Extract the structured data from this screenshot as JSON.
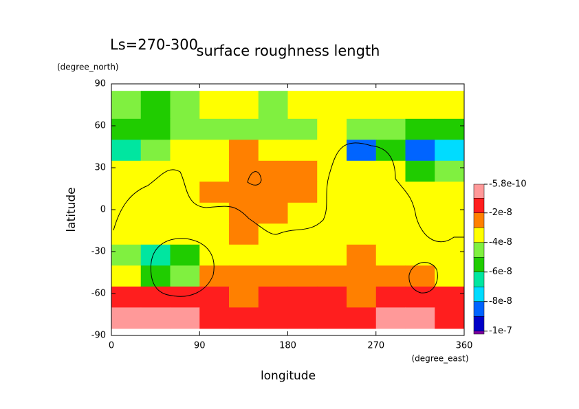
{
  "chart_data": {
    "type": "filled-contour",
    "title": "surface roughness length",
    "subtitle": "Ls=270-300",
    "x_label": "longitude",
    "x_units": "(degree_east)",
    "y_label": "latitude",
    "y_units": "(degree_north)",
    "xlim": [
      0,
      360
    ],
    "xticks": [
      0,
      90,
      180,
      270,
      360
    ],
    "ylim": [
      -90,
      90
    ],
    "yticks": [
      -90,
      -60,
      -30,
      0,
      30,
      60,
      90
    ],
    "x_edges": [
      0,
      30,
      60,
      90,
      120,
      150,
      180,
      210,
      240,
      270,
      300,
      330,
      360
    ],
    "y_edges": [
      85,
      65,
      50,
      35,
      20,
      5,
      -10,
      -25,
      -40,
      -55,
      -70,
      -85
    ],
    "z": [
      [
        -4.5e-08,
        -5.5e-08,
        -4.5e-08,
        -3.5e-08,
        -3.5e-08,
        -4.5e-08,
        -3.5e-08,
        -3.5e-08,
        -3.5e-08,
        -3.5e-08,
        -3.5e-08,
        -3.5e-08
      ],
      [
        -5.5e-08,
        -5.5e-08,
        -4.5e-08,
        -4.5e-08,
        -4.5e-08,
        -4.5e-08,
        -4.5e-08,
        -3.5e-08,
        -4.5e-08,
        -4.5e-08,
        -5.5e-08,
        -5.5e-08
      ],
      [
        -6.5e-08,
        -4.5e-08,
        -3.5e-08,
        -3.5e-08,
        -2.5e-08,
        -3.5e-08,
        -3.5e-08,
        -3.5e-08,
        -8.5e-08,
        -5.5e-08,
        -8.5e-08,
        -7.5e-08
      ],
      [
        -3.5e-08,
        -3.5e-08,
        -3.5e-08,
        -3.5e-08,
        -2.5e-08,
        -2.5e-08,
        -2.5e-08,
        -3.5e-08,
        -3.5e-08,
        -3.5e-08,
        -5.5e-08,
        -4.5e-08
      ],
      [
        -3.5e-08,
        -3.5e-08,
        -3.5e-08,
        -2.5e-08,
        -2.5e-08,
        -2.5e-08,
        -2.5e-08,
        -3.5e-08,
        -3.5e-08,
        -3.5e-08,
        -3.5e-08,
        -3.5e-08
      ],
      [
        -3.5e-08,
        -3.5e-08,
        -3.5e-08,
        -3.5e-08,
        -2.5e-08,
        -2.5e-08,
        -3.5e-08,
        -3.5e-08,
        -3.5e-08,
        -3.5e-08,
        -3.5e-08,
        -3.5e-08
      ],
      [
        -3.5e-08,
        -3.5e-08,
        -3.5e-08,
        -3.5e-08,
        -2.5e-08,
        -3.5e-08,
        -3.5e-08,
        -3.5e-08,
        -3.5e-08,
        -3.5e-08,
        -3.5e-08,
        -3.5e-08
      ],
      [
        -4.5e-08,
        -6.5e-08,
        -5.5e-08,
        -3.5e-08,
        -3.5e-08,
        -3.5e-08,
        -3.5e-08,
        -3.5e-08,
        -2.5e-08,
        -3.5e-08,
        -3.5e-08,
        -3.5e-08
      ],
      [
        -3.5e-08,
        -5.5e-08,
        -4.5e-08,
        -2.5e-08,
        -2.5e-08,
        -2.5e-08,
        -2.5e-08,
        -2.5e-08,
        -2.5e-08,
        -2.5e-08,
        -2.5e-08,
        -3.5e-08
      ],
      [
        -1.5e-08,
        -1.5e-08,
        -1.5e-08,
        -1.5e-08,
        -2.5e-08,
        -1.5e-08,
        -1.5e-08,
        -1.5e-08,
        -2.5e-08,
        -1.5e-08,
        -1.5e-08,
        -1.5e-08
      ],
      [
        -5e-09,
        -5e-09,
        -5e-09,
        -1.5e-08,
        -1.5e-08,
        -1.5e-08,
        -1.5e-08,
        -1.5e-08,
        -1.5e-08,
        -5e-09,
        -5e-09,
        -1.5e-08
      ]
    ],
    "colorbar": {
      "lim": [
        -1.02e-07,
        -5.8e-10
      ],
      "levels": [
        -1e-07,
        -9e-08,
        -8e-08,
        -7e-08,
        -6e-08,
        -5e-08,
        -4e-08,
        -3e-08,
        -2e-08,
        -1e-08
      ],
      "colors": [
        "#8000a0",
        "#0000c8",
        "#0064ff",
        "#00dcff",
        "#00e6a0",
        "#20cc00",
        "#80f040",
        "#ffff00",
        "#ff8000",
        "#ff1e1e",
        "#ff9999"
      ],
      "ticks": [
        -5.8e-10,
        -2e-08,
        -4e-08,
        -6e-08,
        -8e-08,
        -1e-07
      ]
    }
  }
}
